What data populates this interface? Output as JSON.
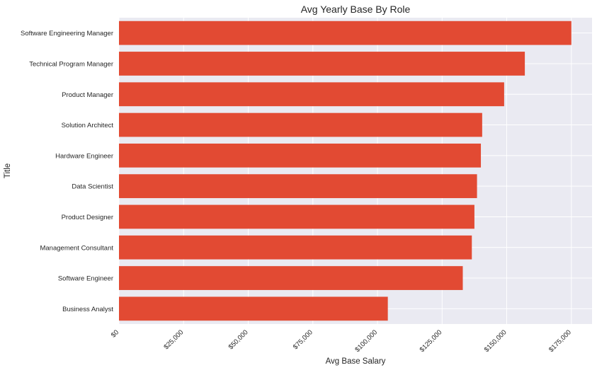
{
  "chart_data": {
    "type": "bar",
    "orientation": "horizontal",
    "title": "Avg Yearly Base By Role",
    "xlabel": "Avg Base Salary",
    "ylabel": "Title",
    "categories": [
      "Software Engineering Manager",
      "Technical Program Manager",
      "Product Manager",
      "Solution Architect",
      "Hardware Engineer",
      "Data Scientist",
      "Product Designer",
      "Management Consultant",
      "Software Engineer",
      "Business Analyst"
    ],
    "values": [
      175000,
      157000,
      149000,
      140500,
      140000,
      138500,
      137500,
      136500,
      133000,
      104000
    ],
    "xlim": [
      0,
      183000
    ],
    "xticks": [
      0,
      25000,
      50000,
      75000,
      100000,
      125000,
      150000,
      175000
    ],
    "xtick_labels": [
      "$0",
      "$25,000",
      "$50,000",
      "$75,000",
      "$100,000",
      "$125,000",
      "$150,000",
      "$175,000"
    ],
    "grid": true,
    "bar_color": "#e24a33",
    "background_color": "#eaeaf2",
    "grid_color": "#ffffff"
  }
}
